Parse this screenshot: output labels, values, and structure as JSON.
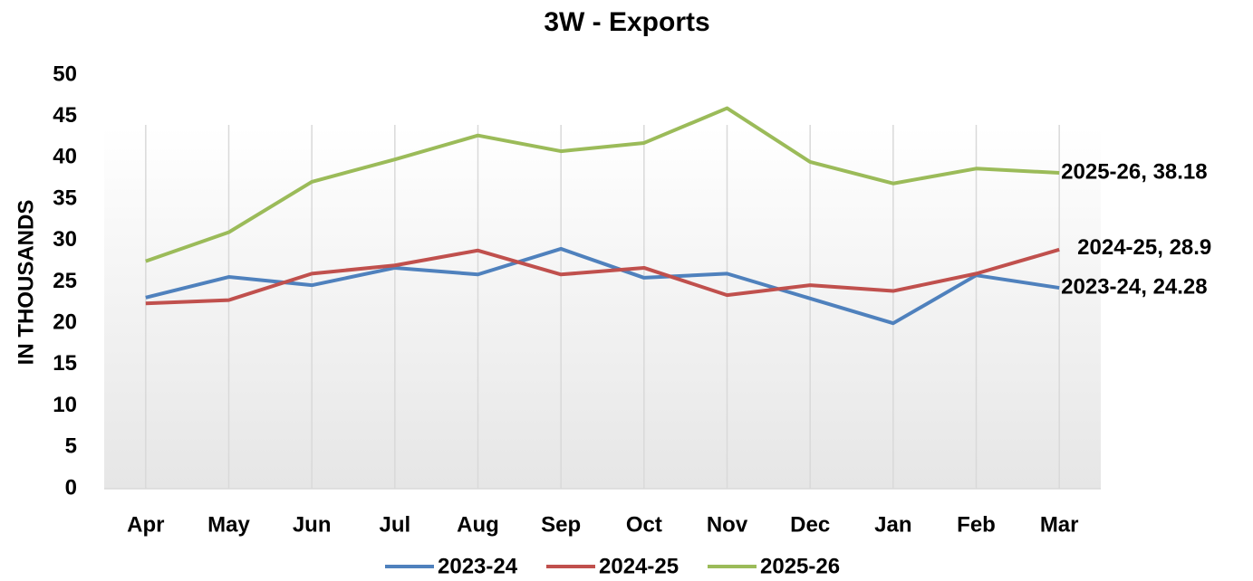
{
  "chart_data": {
    "type": "line",
    "title": "3W - Exports",
    "y_label": "IN THOUSANDS",
    "categories": [
      "Apr",
      "May",
      "Jun",
      "Jul",
      "Aug",
      "Sep",
      "Oct",
      "Nov",
      "Dec",
      "Jan",
      "Feb",
      "Mar"
    ],
    "series": [
      {
        "name": "2023-24",
        "color": "#4f81bd",
        "values": [
          23.1,
          25.6,
          24.6,
          26.7,
          25.9,
          29.0,
          25.5,
          26.0,
          23.0,
          20.0,
          25.8,
          24.28
        ],
        "value_labels": [
          null,
          null,
          null,
          null,
          null,
          null,
          null,
          null,
          null,
          null,
          null,
          "2023-24, 24.28"
        ]
      },
      {
        "name": "2024-25",
        "color": "#c0504d",
        "values": [
          22.4,
          22.8,
          26.0,
          27.0,
          28.8,
          25.9,
          26.7,
          23.4,
          24.6,
          23.9,
          26.0,
          28.9
        ],
        "value_labels": [
          null,
          null,
          null,
          null,
          null,
          null,
          null,
          null,
          null,
          null,
          null,
          "2024-25, 28.9"
        ]
      },
      {
        "name": "2025-26",
        "color": "#9bbb59",
        "values": [
          27.5,
          31.0,
          37.1,
          39.8,
          42.7,
          40.8,
          41.8,
          46.0,
          39.5,
          36.9,
          38.7,
          38.18
        ],
        "value_labels": [
          null,
          null,
          null,
          null,
          null,
          null,
          null,
          null,
          null,
          null,
          null,
          "2025-26, 38.18"
        ]
      }
    ],
    "ylim": [
      0,
      50
    ],
    "yticks": [
      0,
      5,
      10,
      15,
      20,
      25,
      30,
      35,
      40,
      45,
      50
    ],
    "grid": true,
    "legend": "bottom"
  }
}
